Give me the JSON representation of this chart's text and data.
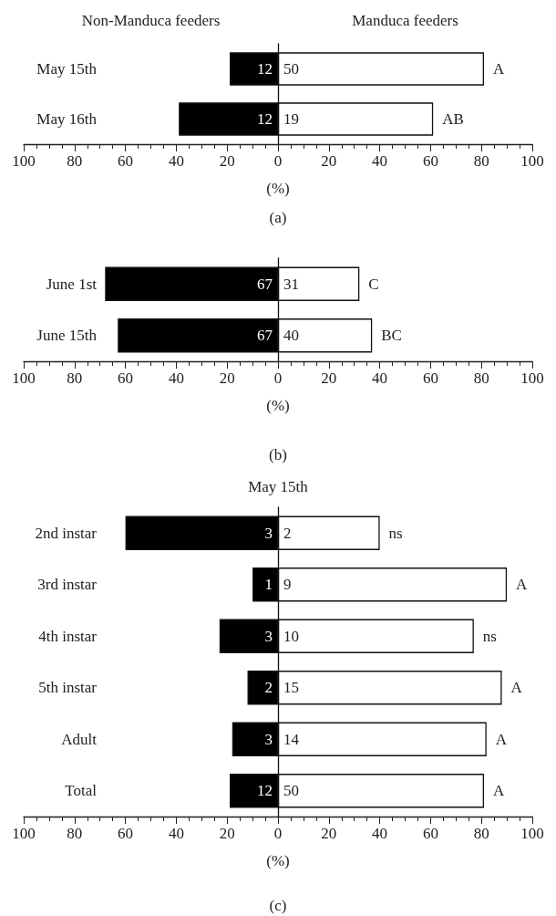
{
  "chart_data": [
    {
      "type": "bar",
      "orientation": "horizontal",
      "stacked": true,
      "categories": [
        "May 15th",
        "May 16th"
      ],
      "xlabel": "(%)",
      "series": [
        {
          "name": "Non-Manduca feeders",
          "color": "#000000",
          "values": [
            -19,
            -39
          ]
        },
        {
          "name": "Manduca feeders",
          "color": "#ffffff",
          "values": [
            81,
            61
          ]
        }
      ],
      "xlim": [
        -100,
        100
      ],
      "xticks": [
        {
          "value": -100,
          "label": "100"
        },
        {
          "value": -80,
          "label": "80"
        },
        {
          "value": -60,
          "label": "60"
        },
        {
          "value": -40,
          "label": "40"
        },
        {
          "value": -20,
          "label": "20"
        },
        0,
        20,
        40,
        60,
        80,
        100
      ],
      "annotations": [
        "12",
        "50",
        "12",
        "19",
        {
          "text": "A",
          "x": 81,
          "y": "May 15th"
        },
        {
          "text": "AB",
          "x": 61,
          "y": "May 16th"
        },
        "(a)"
      ]
    },
    {
      "type": "bar",
      "orientation": "horizontal",
      "stacked": true,
      "categories": [
        "June 1st",
        "June 15th"
      ],
      "xlabel": "(%)",
      "series": [
        {
          "color": "#000000",
          "values": [
            -68,
            -63
          ]
        },
        {
          "color": "#ffffff",
          "values": [
            32,
            37
          ]
        }
      ],
      "xlim": [
        -100,
        100
      ],
      "xticks": [
        {
          "value": -100,
          "label": "100"
        },
        {
          "value": -80,
          "label": "80"
        },
        {
          "value": -60,
          "label": "60"
        },
        {
          "value": -40,
          "label": "40"
        },
        {
          "value": -20,
          "label": "20"
        },
        0,
        20,
        40,
        60,
        80,
        100
      ],
      "annotations": [
        "67",
        "31",
        "67",
        "40",
        {
          "text": "C",
          "x": 32,
          "y": "June 1st"
        },
        {
          "text": "BC",
          "x": 37,
          "y": "June 15th"
        },
        "(b)"
      ]
    },
    {
      "type": "bar",
      "orientation": "horizontal",
      "stacked": true,
      "title": "May 15th",
      "categories": [
        "2nd instar",
        "3rd instar",
        "4th instar",
        "5th instar",
        "Adult",
        "Total"
      ],
      "xlabel": "(%)",
      "series": [
        {
          "color": "#000000",
          "values": [
            -60,
            -10,
            -23,
            -12,
            -18,
            -19
          ]
        },
        {
          "color": "#ffffff",
          "values": [
            40,
            90,
            77,
            88,
            82,
            81
          ]
        }
      ],
      "xlim": [
        -100,
        100
      ],
      "xticks": [
        {
          "value": -100,
          "label": "100"
        },
        {
          "value": -80,
          "label": "80"
        },
        {
          "value": -60,
          "label": "60"
        },
        {
          "value": -40,
          "label": "40"
        },
        {
          "value": -20,
          "label": "20"
        },
        0,
        20,
        40,
        60,
        80,
        100
      ],
      "annotations": [
        "3",
        "2",
        "1",
        "9",
        "3",
        "10",
        "2",
        "15",
        "3",
        "14",
        "12",
        "50",
        {
          "text": "ns",
          "x": 40,
          "y": "2nd instar"
        },
        {
          "text": "A",
          "x": 90,
          "y": "3rd instar"
        },
        {
          "text": "ns",
          "x": 77,
          "y": "4th instar"
        },
        {
          "text": "A",
          "x": 88,
          "y": "5th instar"
        },
        {
          "text": "A",
          "x": 82,
          "y": "Adult"
        },
        {
          "text": "A",
          "x": 81,
          "y": "Total"
        },
        "(c)"
      ]
    }
  ]
}
